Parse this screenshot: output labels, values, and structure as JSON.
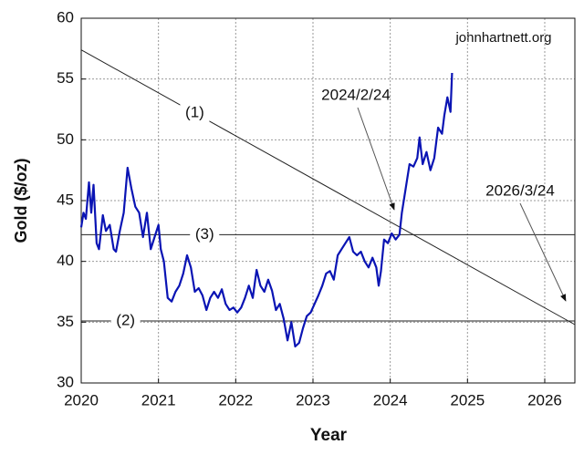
{
  "chart_data": {
    "type": "line",
    "x_label": "Year",
    "y_label": "Gold ($/oz)",
    "watermark": "johnhartnett.org",
    "xlim": [
      2020,
      2026.39
    ],
    "ylim": [
      30,
      60
    ],
    "xticks": [
      2020,
      2021,
      2022,
      2023,
      2024,
      2025,
      2026
    ],
    "yticks": [
      30,
      35,
      40,
      45,
      50,
      55,
      60
    ],
    "grid": true,
    "series": [
      {
        "name": "Gold",
        "color": "#0a14b4",
        "x": [
          2020.0,
          2020.03,
          2020.06,
          2020.1,
          2020.13,
          2020.16,
          2020.2,
          2020.23,
          2020.28,
          2020.32,
          2020.37,
          2020.42,
          2020.45,
          2020.5,
          2020.55,
          2020.6,
          2020.65,
          2020.7,
          2020.75,
          2020.8,
          2020.85,
          2020.9,
          2020.95,
          2021.0,
          2021.03,
          2021.07,
          2021.12,
          2021.17,
          2021.22,
          2021.27,
          2021.32,
          2021.37,
          2021.42,
          2021.47,
          2021.52,
          2021.57,
          2021.62,
          2021.67,
          2021.72,
          2021.77,
          2021.82,
          2021.87,
          2021.92,
          2021.97,
          2022.02,
          2022.07,
          2022.12,
          2022.17,
          2022.22,
          2022.27,
          2022.32,
          2022.37,
          2022.42,
          2022.47,
          2022.52,
          2022.57,
          2022.62,
          2022.67,
          2022.72,
          2022.77,
          2022.82,
          2022.87,
          2022.92,
          2022.97,
          2023.02,
          2023.07,
          2023.12,
          2023.17,
          2023.22,
          2023.27,
          2023.32,
          2023.37,
          2023.42,
          2023.47,
          2023.52,
          2023.57,
          2023.62,
          2023.67,
          2023.72,
          2023.77,
          2023.82,
          2023.85,
          2023.88,
          2023.92,
          2023.97,
          2024.02,
          2024.07,
          2024.12,
          2024.15,
          2024.2,
          2024.25,
          2024.3,
          2024.35,
          2024.38,
          2024.42,
          2024.47,
          2024.52,
          2024.57,
          2024.62,
          2024.67,
          2024.7,
          2024.74,
          2024.78,
          2024.8
        ],
        "values": [
          42.8,
          44,
          43.5,
          46.5,
          44,
          46.3,
          41.5,
          41,
          43.8,
          42.5,
          43,
          41,
          40.8,
          42.5,
          44,
          47.7,
          46,
          44.5,
          44,
          42,
          44,
          41,
          42,
          43,
          41,
          40,
          37,
          36.7,
          37.5,
          38,
          39,
          40.5,
          39.5,
          37.5,
          37.8,
          37.2,
          36,
          37,
          37.5,
          37,
          37.7,
          36.5,
          36,
          36.2,
          35.8,
          36.2,
          37,
          38,
          37,
          39.3,
          38,
          37.5,
          38.5,
          37.6,
          36,
          36.5,
          35.3,
          33.5,
          35,
          33,
          33.3,
          34.5,
          35.5,
          35.8,
          36.5,
          37.2,
          38,
          39,
          39.2,
          38.5,
          40.5,
          41,
          41.5,
          42,
          40.8,
          40.5,
          40.8,
          40,
          39.5,
          40.3,
          39.5,
          38,
          39.2,
          41.8,
          41.5,
          42.3,
          41.8,
          42.2,
          44,
          46,
          48,
          47.8,
          48.5,
          50.2,
          48,
          49,
          47.5,
          48.5,
          51,
          50.5,
          52,
          53.5,
          52.3,
          55.5
        ]
      }
    ],
    "reference_lines": [
      {
        "label": "(1)",
        "x": [
          2020,
          2026.39
        ],
        "y": [
          57.4,
          34.8
        ]
      },
      {
        "label": "(2)",
        "x": [
          2020,
          2026.39
        ],
        "y": [
          35.1,
          35.1
        ]
      },
      {
        "label": "(3)",
        "x": [
          2020,
          2026.39
        ],
        "y": [
          42.2,
          42.2
        ]
      }
    ],
    "annotations": [
      "2024/2/24",
      "2026/3/24"
    ]
  }
}
